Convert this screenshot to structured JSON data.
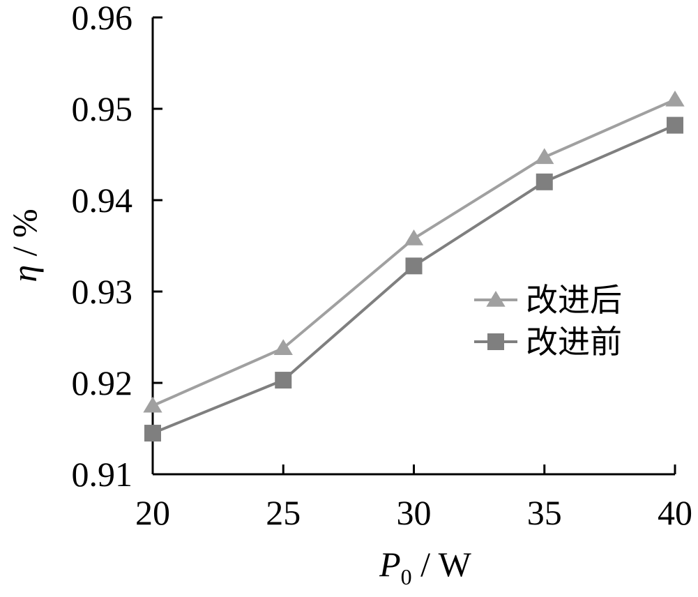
{
  "chart_data": {
    "type": "line",
    "x": [
      20,
      25,
      30,
      35,
      40
    ],
    "x_ticks": [
      "20",
      "25",
      "30",
      "35",
      "40"
    ],
    "y_ticks": [
      "0.91",
      "0.92",
      "0.93",
      "0.94",
      "0.95",
      "0.96"
    ],
    "xlim": [
      20,
      40
    ],
    "ylim": [
      0.91,
      0.96
    ],
    "xlabel": {
      "var": "P",
      "sub": "0",
      "unit": " / W"
    },
    "ylabel": {
      "var": "η",
      "unit": " / %"
    },
    "grid": false,
    "legend_position": "right",
    "series": [
      {
        "name": "改进后",
        "marker": "triangle",
        "color": "#a0a0a0",
        "values": [
          0.9175,
          0.9238,
          0.9358,
          0.9447,
          0.951
        ]
      },
      {
        "name": "改进前",
        "marker": "square",
        "color": "#7f7f7f",
        "values": [
          0.9145,
          0.9203,
          0.9328,
          0.942,
          0.9482
        ]
      }
    ]
  }
}
